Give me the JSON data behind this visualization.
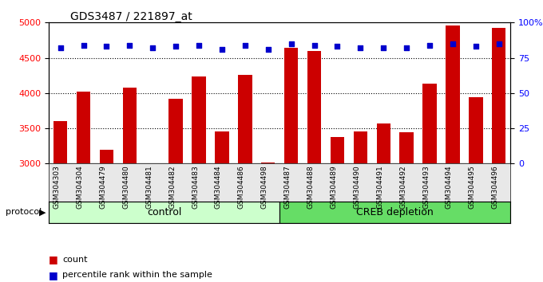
{
  "title": "GDS3487 / 221897_at",
  "samples": [
    "GSM304303",
    "GSM304304",
    "GSM304479",
    "GSM304480",
    "GSM304481",
    "GSM304482",
    "GSM304483",
    "GSM304484",
    "GSM304486",
    "GSM304498",
    "GSM304487",
    "GSM304488",
    "GSM304489",
    "GSM304490",
    "GSM304491",
    "GSM304492",
    "GSM304493",
    "GSM304494",
    "GSM304495",
    "GSM304496"
  ],
  "counts": [
    3600,
    4020,
    3200,
    4080,
    3000,
    3920,
    4230,
    3460,
    4260,
    3020,
    4640,
    4600,
    3380,
    3450,
    3570,
    3440,
    4130,
    4960,
    3940,
    4920
  ],
  "percentile_ranks": [
    82,
    84,
    83,
    84,
    82,
    83,
    84,
    81,
    84,
    81,
    85,
    84,
    83,
    82,
    82,
    82,
    84,
    85,
    83,
    85
  ],
  "control_count": 10,
  "creb_count": 10,
  "bar_color": "#cc0000",
  "dot_color": "#0000cc",
  "ylim_left": [
    3000,
    5000
  ],
  "ylim_right": [
    0,
    100
  ],
  "yticks_left": [
    3000,
    3500,
    4000,
    4500,
    5000
  ],
  "yticks_right": [
    0,
    25,
    50,
    75,
    100
  ],
  "grid_values": [
    3500,
    4000,
    4500
  ],
  "control_color": "#ccffcc",
  "creb_color": "#66dd66",
  "protocol_label": "protocol",
  "control_label": "control",
  "creb_label": "CREB depletion",
  "legend_count_label": "count",
  "legend_pct_label": "percentile rank within the sample",
  "bg_color": "#e8e8e8",
  "plot_bg": "#ffffff"
}
